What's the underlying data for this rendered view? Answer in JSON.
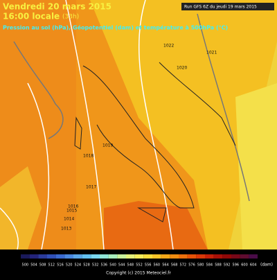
{
  "header": {
    "date": "Vendredi 20 mars 2015",
    "time": "16:00 locale",
    "lead": "(33h)",
    "subtitle": "Pression au sol (hPa), Géopotentiel (dam) et température à 500hPa (°C)",
    "run": "Run GFS 6Z du jeudi 19 mars 2015"
  },
  "isobars": [
    "1022",
    "1021",
    "1020",
    "1019",
    "1018",
    "1017",
    "1016",
    "1015",
    "1014",
    "1013"
  ],
  "legend": {
    "unit": "(dam)",
    "labels": [
      "500",
      "504",
      "508",
      "512",
      "516",
      "520",
      "524",
      "528",
      "532",
      "536",
      "540",
      "544",
      "548",
      "552",
      "556",
      "560",
      "564",
      "568",
      "572",
      "576",
      "580",
      "584",
      "588",
      "592",
      "596",
      "600",
      "604"
    ],
    "colors": [
      "#1a1a5a",
      "#23237a",
      "#2b3b9a",
      "#3050b8",
      "#3a6ad0",
      "#4a88e0",
      "#5aa6e8",
      "#62c0f0",
      "#7ad8f0",
      "#90e6d8",
      "#a8eebc",
      "#c8f09a",
      "#e4f07a",
      "#f4ec5a",
      "#f8dc3c",
      "#f8c428",
      "#f4a818",
      "#f08c10",
      "#ec700c",
      "#e45208",
      "#d83808",
      "#c42008",
      "#a81008",
      "#900808",
      "#780818",
      "#600c30",
      "#4a0c48"
    ]
  },
  "copyright": "Copyright (c) 2015 Meteociel.fr"
}
